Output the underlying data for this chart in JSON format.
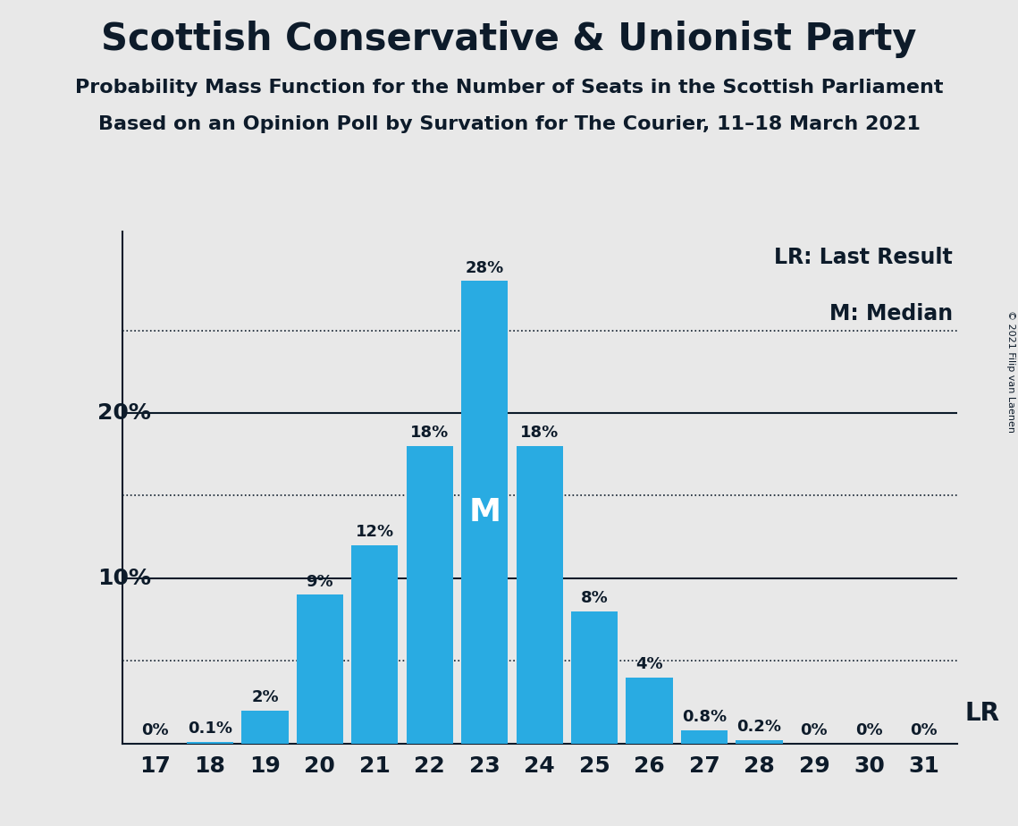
{
  "title": "Scottish Conservative & Unionist Party",
  "subtitle1": "Probability Mass Function for the Number of Seats in the Scottish Parliament",
  "subtitle2": "Based on an Opinion Poll by Survation for The Courier, 11–18 March 2021",
  "copyright": "© 2021 Filip van Laenen",
  "categories": [
    17,
    18,
    19,
    20,
    21,
    22,
    23,
    24,
    25,
    26,
    27,
    28,
    29,
    30,
    31
  ],
  "values": [
    0.0,
    0.1,
    2.0,
    9.0,
    12.0,
    18.0,
    28.0,
    18.0,
    8.0,
    4.0,
    0.8,
    0.2,
    0.0,
    0.0,
    0.0
  ],
  "bar_color": "#29ABE2",
  "background_color": "#E8E8E8",
  "text_color": "#0D1B2A",
  "median_seat": 23,
  "last_result_seat": 31,
  "dotted_lines": [
    5,
    15,
    25
  ],
  "solid_lines": [
    10,
    20
  ],
  "legend_lr": "LR: Last Result",
  "legend_m": "M: Median",
  "lr_label": "LR",
  "m_label": "M",
  "bar_labels": [
    "0%",
    "0.1%",
    "2%",
    "9%",
    "12%",
    "18%",
    "28%",
    "18%",
    "8%",
    "4%",
    "0.8%",
    "0.2%",
    "0%",
    "0%",
    "0%"
  ],
  "ylim": [
    0,
    31
  ],
  "ylabel_10": "10%",
  "ylabel_20": "20%"
}
